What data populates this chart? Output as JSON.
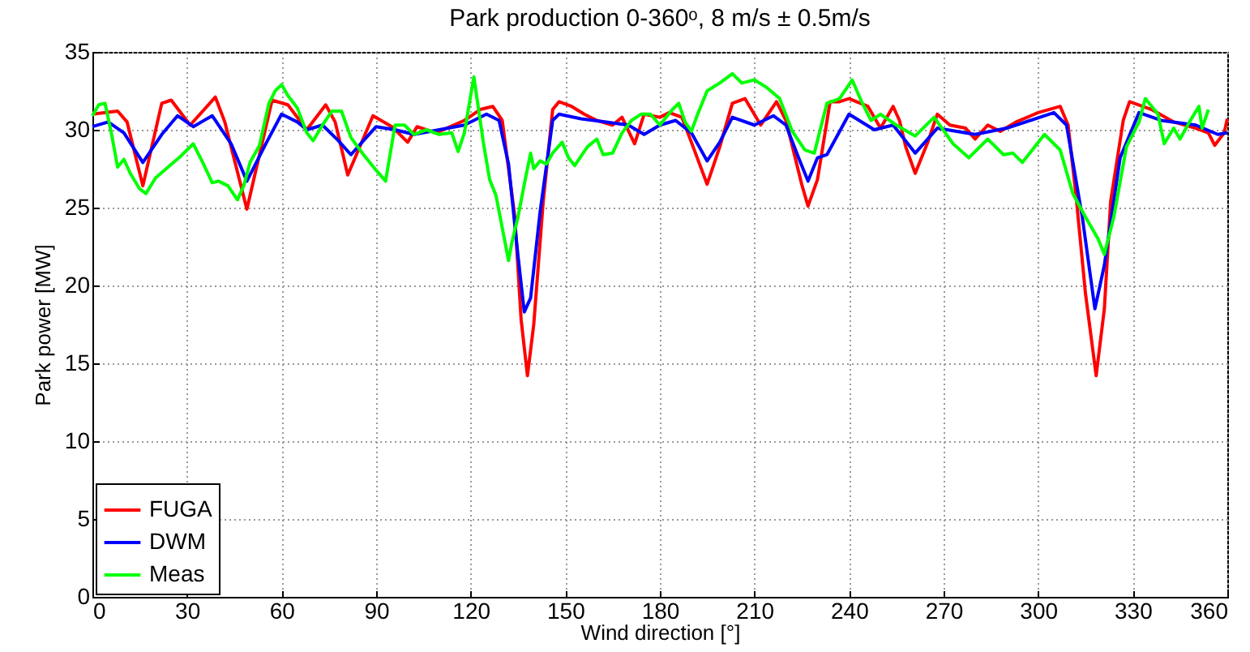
{
  "chart_data": {
    "type": "line",
    "title": "Park production 0-360ᵒ, 8 m/s ± 0.5m/s",
    "xlabel": "Wind direction [°]",
    "ylabel": "Park power [MW]",
    "xlim": [
      0,
      360
    ],
    "xticks": [
      0,
      30,
      60,
      90,
      120,
      150,
      180,
      210,
      240,
      270,
      300,
      330,
      360
    ],
    "ylim": [
      0,
      35
    ],
    "yticks": [
      0,
      5,
      10,
      15,
      20,
      25,
      30,
      35
    ],
    "grid": true,
    "legend": "bottom left",
    "series": [
      {
        "name": "FUGA",
        "color": "#ff0000",
        "x": [
          0,
          8,
          11,
          16,
          22,
          25,
          31,
          39,
          42,
          49,
          57,
          62,
          68,
          74,
          77,
          81,
          89,
          95,
          100,
          103,
          109,
          118,
          123,
          127,
          130,
          134,
          136,
          138,
          140,
          143,
          146,
          148,
          152,
          156,
          160,
          165,
          168,
          172,
          175,
          180,
          183,
          187,
          190,
          195,
          199,
          203,
          207,
          212,
          217,
          220,
          225,
          227,
          230,
          234,
          237,
          240,
          246,
          250,
          254,
          256,
          258,
          261,
          265,
          268,
          272,
          277,
          280,
          284,
          288,
          293,
          300,
          307,
          309.5,
          312,
          315,
          318.4,
          321,
          323,
          327,
          329,
          336,
          343,
          350,
          354,
          356,
          359,
          360
        ],
        "values": [
          31.0,
          31.2,
          30.5,
          26.4,
          31.7,
          31.9,
          30.3,
          32.1,
          30.5,
          24.9,
          31.9,
          31.6,
          30.0,
          31.6,
          30.5,
          27.1,
          30.9,
          30.2,
          29.2,
          30.2,
          29.8,
          30.6,
          31.3,
          31.5,
          30.6,
          24.4,
          17.8,
          14.2,
          17.5,
          25.4,
          31.3,
          31.8,
          31.5,
          31.0,
          30.6,
          30.3,
          30.8,
          29.1,
          31.0,
          30.8,
          31.1,
          30.8,
          29.2,
          26.5,
          28.9,
          31.7,
          32.0,
          30.3,
          31.8,
          30.6,
          26.5,
          25.1,
          26.8,
          31.8,
          31.8,
          32.0,
          31.5,
          30.1,
          31.5,
          30.6,
          28.9,
          27.2,
          29.2,
          31.0,
          30.3,
          30.1,
          29.4,
          30.3,
          29.9,
          30.5,
          31.1,
          31.5,
          30.3,
          25.8,
          19.5,
          14.2,
          18.5,
          25.4,
          30.6,
          31.8,
          31.3,
          30.5,
          30.1,
          29.8,
          29.0,
          29.8,
          30.7
        ]
      },
      {
        "name": "DWM",
        "color": "#0000ff",
        "x": [
          0,
          5,
          10,
          16,
          22,
          27,
          32,
          38,
          44,
          49,
          55,
          60,
          65,
          68,
          73,
          78,
          82,
          86,
          90,
          96,
          102,
          110,
          118,
          125,
          129,
          132,
          135,
          137,
          139,
          142,
          146,
          148,
          155,
          163,
          170,
          175,
          180,
          185,
          190,
          195,
          199,
          203,
          210,
          216,
          220,
          224,
          227,
          230,
          233,
          240,
          248,
          254,
          261,
          268,
          280,
          290,
          305,
          309,
          314,
          318,
          321,
          326,
          332,
          339,
          350,
          357,
          360
        ],
        "values": [
          30.2,
          30.5,
          29.8,
          27.9,
          29.7,
          30.9,
          30.2,
          30.9,
          29.1,
          26.7,
          29.1,
          31.0,
          30.5,
          30.0,
          30.3,
          29.3,
          28.4,
          29.3,
          30.2,
          30.0,
          29.7,
          30.0,
          30.3,
          31.0,
          30.6,
          27.8,
          21.9,
          18.3,
          19.2,
          24.7,
          30.6,
          31.0,
          30.7,
          30.5,
          30.3,
          29.7,
          30.3,
          30.6,
          29.8,
          28.0,
          29.2,
          30.8,
          30.3,
          30.9,
          30.3,
          28.2,
          26.7,
          28.2,
          28.4,
          31.0,
          30.0,
          30.3,
          28.5,
          30.1,
          29.7,
          30.1,
          31.1,
          30.3,
          24.4,
          18.5,
          21.3,
          28.2,
          31.1,
          30.6,
          30.3,
          29.7,
          29.8
        ]
      },
      {
        "name": "Meas",
        "color": "#00ff00",
        "x": [
          0,
          2,
          4,
          6,
          8,
          10,
          12,
          15,
          17,
          20,
          24,
          28,
          32,
          35,
          38,
          40,
          43,
          46,
          48,
          50,
          53,
          56,
          58,
          60,
          62,
          65,
          68,
          70,
          73,
          76,
          79,
          82,
          86,
          90,
          93,
          96,
          99,
          102,
          106,
          110,
          114,
          116,
          118,
          120,
          121,
          122,
          124,
          126,
          128,
          130,
          132,
          133,
          135,
          137,
          139,
          140,
          142,
          144,
          146,
          149,
          151,
          153,
          157,
          160,
          162,
          165,
          168,
          171,
          174,
          177,
          180,
          184,
          186,
          188,
          190,
          192,
          195,
          199,
          203,
          206,
          210,
          214,
          218,
          222,
          226,
          229,
          233,
          237,
          241,
          244,
          247,
          250,
          255,
          261,
          267,
          273,
          278,
          284,
          289,
          292,
          295,
          302,
          307,
          311,
          315,
          319,
          321,
          324,
          328,
          332,
          334,
          338,
          340,
          343,
          345,
          348,
          351,
          352,
          354
        ],
        "values": [
          30.9,
          31.6,
          31.7,
          29.8,
          27.6,
          28.1,
          27.2,
          26.2,
          25.9,
          26.9,
          27.6,
          28.3,
          29.1,
          27.9,
          26.6,
          26.7,
          26.4,
          25.5,
          26.4,
          27.9,
          29.0,
          31.7,
          32.5,
          32.9,
          32.2,
          31.4,
          29.8,
          29.3,
          30.3,
          31.2,
          31.2,
          29.5,
          28.4,
          27.4,
          26.7,
          30.3,
          30.3,
          29.7,
          30.0,
          29.7,
          29.8,
          28.6,
          29.8,
          32.2,
          33.4,
          32.0,
          29.2,
          26.8,
          25.8,
          23.7,
          21.6,
          22.7,
          24.4,
          26.5,
          28.5,
          27.5,
          28.0,
          27.8,
          28.5,
          29.2,
          28.2,
          27.7,
          28.9,
          29.4,
          28.4,
          28.5,
          29.8,
          30.6,
          31.0,
          31.0,
          30.3,
          31.3,
          31.7,
          30.5,
          29.9,
          31.0,
          32.5,
          33.0,
          33.6,
          33.0,
          33.2,
          32.7,
          32.0,
          29.9,
          28.7,
          28.5,
          31.7,
          32.0,
          33.2,
          31.8,
          30.6,
          31.0,
          30.3,
          29.6,
          30.8,
          29.1,
          28.2,
          29.4,
          28.4,
          28.5,
          27.9,
          29.7,
          28.7,
          25.9,
          24.4,
          23.0,
          22.0,
          24.4,
          28.9,
          30.5,
          32.0,
          31.0,
          29.1,
          30.1,
          29.4,
          30.5,
          31.5,
          30.1,
          31.3
        ]
      }
    ]
  }
}
